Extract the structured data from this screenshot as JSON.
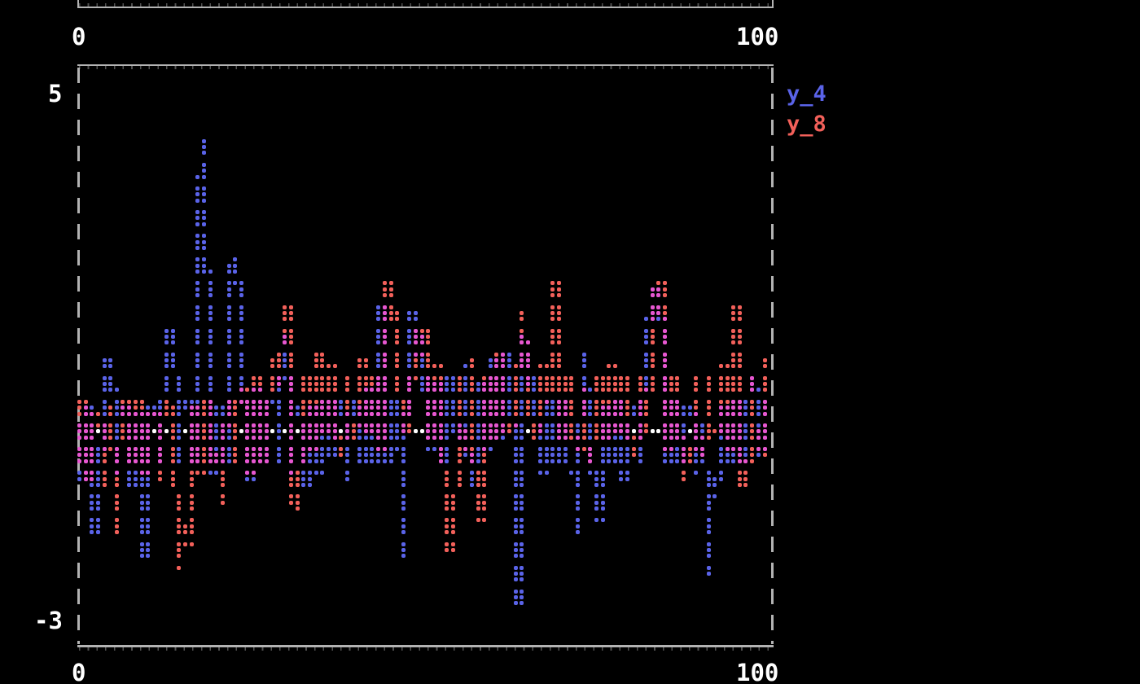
{
  "top_chart": {
    "x_axis": {
      "left_label": "0",
      "right_label": "100"
    }
  },
  "main_chart": {
    "y_axis": {
      "top_label": "5",
      "bottom_label": "-3"
    },
    "x_axis": {
      "left_label": "0",
      "right_label": "100"
    },
    "legend": [
      {
        "label": "y_4",
        "color_key": "blue"
      },
      {
        "label": "y_8",
        "color_key": "red"
      }
    ],
    "colors": {
      "blue": "#5a63e8",
      "red": "#f2605a",
      "overlap": "#e757d1",
      "baseline": "#ffffff",
      "border": "#b3b3b3",
      "text": "#ffffff",
      "background": "#000000"
    }
  },
  "chart_data": {
    "type": "scatter",
    "title": "",
    "xlabel": "",
    "ylabel": "",
    "xlim": [
      0,
      100
    ],
    "ylim": [
      -3,
      5
    ],
    "grid": false,
    "legend_position": "top-right",
    "marker_style": "braille-dots",
    "render": {
      "step": 0.5,
      "jitter": 0.2
    },
    "baseline": {
      "y": -0.08,
      "color_key": "baseline"
    },
    "series": [
      {
        "name": "y_4",
        "color_key": "blue",
        "anchors": [
          [
            0,
            0.25
          ],
          [
            1,
            -0.6
          ],
          [
            2,
            0.45
          ],
          [
            3,
            -1.45
          ],
          [
            4,
            0.3
          ],
          [
            5,
            1.15
          ],
          [
            6,
            -0.55
          ],
          [
            7,
            0.45
          ],
          [
            8,
            -0.8
          ],
          [
            9,
            0.35
          ],
          [
            10,
            -1.85
          ],
          [
            11,
            0.45
          ],
          [
            12,
            -0.5
          ],
          [
            13,
            1.0
          ],
          [
            14,
            1.6
          ],
          [
            15,
            -0.4
          ],
          [
            16,
            0.55
          ],
          [
            17,
            -0.5
          ],
          [
            17.6,
            1.3
          ],
          [
            18.3,
            4.45
          ],
          [
            18.9,
            1.6
          ],
          [
            19.6,
            -0.55
          ],
          [
            20.5,
            0.45
          ],
          [
            21.5,
            -0.35
          ],
          [
            22.5,
            2.6
          ],
          [
            23.2,
            2.3
          ],
          [
            24,
            0.5
          ],
          [
            25,
            -0.65
          ],
          [
            26,
            0.75
          ],
          [
            27,
            -0.5
          ],
          [
            28,
            0.6
          ],
          [
            29,
            -0.35
          ],
          [
            30,
            1.5
          ],
          [
            31,
            -0.55
          ],
          [
            32,
            0.45
          ],
          [
            33,
            -0.75
          ],
          [
            34,
            0.4
          ],
          [
            35,
            -0.55
          ],
          [
            36,
            0.65
          ],
          [
            37,
            -0.3
          ],
          [
            38,
            0.5
          ],
          [
            39,
            -0.65
          ],
          [
            40,
            0.55
          ],
          [
            41,
            -0.4
          ],
          [
            42,
            0.75
          ],
          [
            43,
            -0.45
          ],
          [
            44,
            2.05
          ],
          [
            45,
            -0.35
          ],
          [
            46,
            0.65
          ],
          [
            47,
            -1.85
          ],
          [
            48,
            1.7
          ],
          [
            49.3,
            1.15
          ],
          [
            50,
            0.45
          ],
          [
            51,
            -0.55
          ],
          [
            52,
            0.4
          ],
          [
            53,
            -0.75
          ],
          [
            54,
            0.5
          ],
          [
            55,
            -0.4
          ],
          [
            56,
            0.65
          ],
          [
            57,
            -1.25
          ],
          [
            58,
            0.4
          ],
          [
            59,
            -0.55
          ],
          [
            60,
            0.75
          ],
          [
            61,
            -0.45
          ],
          [
            62,
            0.9
          ],
          [
            63,
            -0.4
          ],
          [
            63.5,
            -2.5
          ],
          [
            64.2,
            1.5
          ],
          [
            65,
            0.8
          ],
          [
            66,
            0.35
          ],
          [
            67,
            -0.55
          ],
          [
            68,
            0.55
          ],
          [
            69,
            -0.4
          ],
          [
            70,
            0.65
          ],
          [
            71,
            -0.45
          ],
          [
            72,
            -1.5
          ],
          [
            73,
            1.25
          ],
          [
            74,
            -0.55
          ],
          [
            75,
            -1.3
          ],
          [
            76,
            0.45
          ],
          [
            77,
            -0.4
          ],
          [
            78,
            0.55
          ],
          [
            79,
            -0.65
          ],
          [
            80,
            0.4
          ],
          [
            81,
            -0.5
          ],
          [
            82,
            0.85
          ],
          [
            83,
            1.9
          ],
          [
            84,
            1.8
          ],
          [
            85,
            -0.45
          ],
          [
            86,
            0.55
          ],
          [
            87,
            -0.4
          ],
          [
            88,
            0.45
          ],
          [
            89,
            -0.55
          ],
          [
            90,
            0.3
          ],
          [
            91,
            -2.05
          ],
          [
            92,
            -0.65
          ],
          [
            93,
            0.45
          ],
          [
            94,
            -0.4
          ],
          [
            95,
            0.55
          ],
          [
            96,
            -0.45
          ],
          [
            97,
            0.85
          ],
          [
            98,
            -0.3
          ],
          [
            99,
            0.55
          ],
          [
            100,
            -0.4
          ]
        ]
      },
      {
        "name": "y_8",
        "color_key": "red",
        "anchors": [
          [
            0,
            -0.35
          ],
          [
            1,
            0.55
          ],
          [
            2,
            -0.65
          ],
          [
            3,
            0.35
          ],
          [
            4,
            -0.85
          ],
          [
            5,
            0.45
          ],
          [
            6,
            -1.55
          ],
          [
            7,
            0.55
          ],
          [
            8,
            -0.35
          ],
          [
            9,
            0.65
          ],
          [
            10,
            -0.55
          ],
          [
            11,
            0.35
          ],
          [
            12,
            -0.65
          ],
          [
            13,
            0.55
          ],
          [
            14,
            -0.45
          ],
          [
            15,
            -1.95
          ],
          [
            16,
            -1.6
          ],
          [
            17,
            0.45
          ],
          [
            18,
            -0.55
          ],
          [
            19,
            0.65
          ],
          [
            20,
            -0.35
          ],
          [
            21,
            -1.0
          ],
          [
            22,
            0.55
          ],
          [
            23,
            -0.45
          ],
          [
            24,
            0.75
          ],
          [
            25,
            -0.55
          ],
          [
            26,
            0.95
          ],
          [
            27,
            -0.35
          ],
          [
            28,
            0.65
          ],
          [
            29.5,
            0.9
          ],
          [
            30.3,
            1.6
          ],
          [
            31,
            -0.45
          ],
          [
            32,
            -1.5
          ],
          [
            33,
            0.55
          ],
          [
            34,
            -0.55
          ],
          [
            35,
            0.85
          ],
          [
            36,
            -0.35
          ],
          [
            37,
            0.65
          ],
          [
            38,
            -0.65
          ],
          [
            39,
            0.45
          ],
          [
            40,
            -0.45
          ],
          [
            41,
            0.75
          ],
          [
            42,
            -0.3
          ],
          [
            43,
            0.55
          ],
          [
            44,
            -0.55
          ],
          [
            45,
            1.95
          ],
          [
            46,
            1.5
          ],
          [
            47,
            -0.35
          ],
          [
            48,
            0.55
          ],
          [
            49,
            1.25
          ],
          [
            50,
            1.3
          ],
          [
            51,
            -0.5
          ],
          [
            52,
            0.65
          ],
          [
            53,
            -0.85
          ],
          [
            54,
            -2.1
          ],
          [
            55,
            0.45
          ],
          [
            56,
            -0.55
          ],
          [
            57,
            0.75
          ],
          [
            58,
            -1.65
          ],
          [
            59,
            0.55
          ],
          [
            60,
            -0.45
          ],
          [
            61,
            0.85
          ],
          [
            62,
            -0.35
          ],
          [
            63,
            0.6
          ],
          [
            64,
            1.45
          ],
          [
            65,
            1.0
          ],
          [
            66,
            -0.5
          ],
          [
            67,
            0.65
          ],
          [
            68,
            0.35
          ],
          [
            69,
            2.0
          ],
          [
            70,
            -0.45
          ],
          [
            71,
            0.55
          ],
          [
            72,
            -0.55
          ],
          [
            73,
            0.35
          ],
          [
            74,
            -0.75
          ],
          [
            75,
            0.55
          ],
          [
            76,
            -0.45
          ],
          [
            77,
            0.65
          ],
          [
            78,
            -0.35
          ],
          [
            79,
            0.45
          ],
          [
            80,
            -0.65
          ],
          [
            81,
            0.55
          ],
          [
            82,
            -0.35
          ],
          [
            83,
            1.85
          ],
          [
            84,
            1.95
          ],
          [
            85,
            -0.55
          ],
          [
            86,
            0.45
          ],
          [
            87,
            -0.45
          ],
          [
            88,
            -0.9
          ],
          [
            89,
            0.55
          ],
          [
            90,
            -0.65
          ],
          [
            91,
            0.45
          ],
          [
            92,
            -0.35
          ],
          [
            93,
            0.65
          ],
          [
            94,
            -0.55
          ],
          [
            95,
            1.6
          ],
          [
            96,
            -1.25
          ],
          [
            97,
            0.45
          ],
          [
            98,
            -0.55
          ],
          [
            99,
            0.75
          ],
          [
            100,
            -0.45
          ]
        ]
      }
    ]
  }
}
